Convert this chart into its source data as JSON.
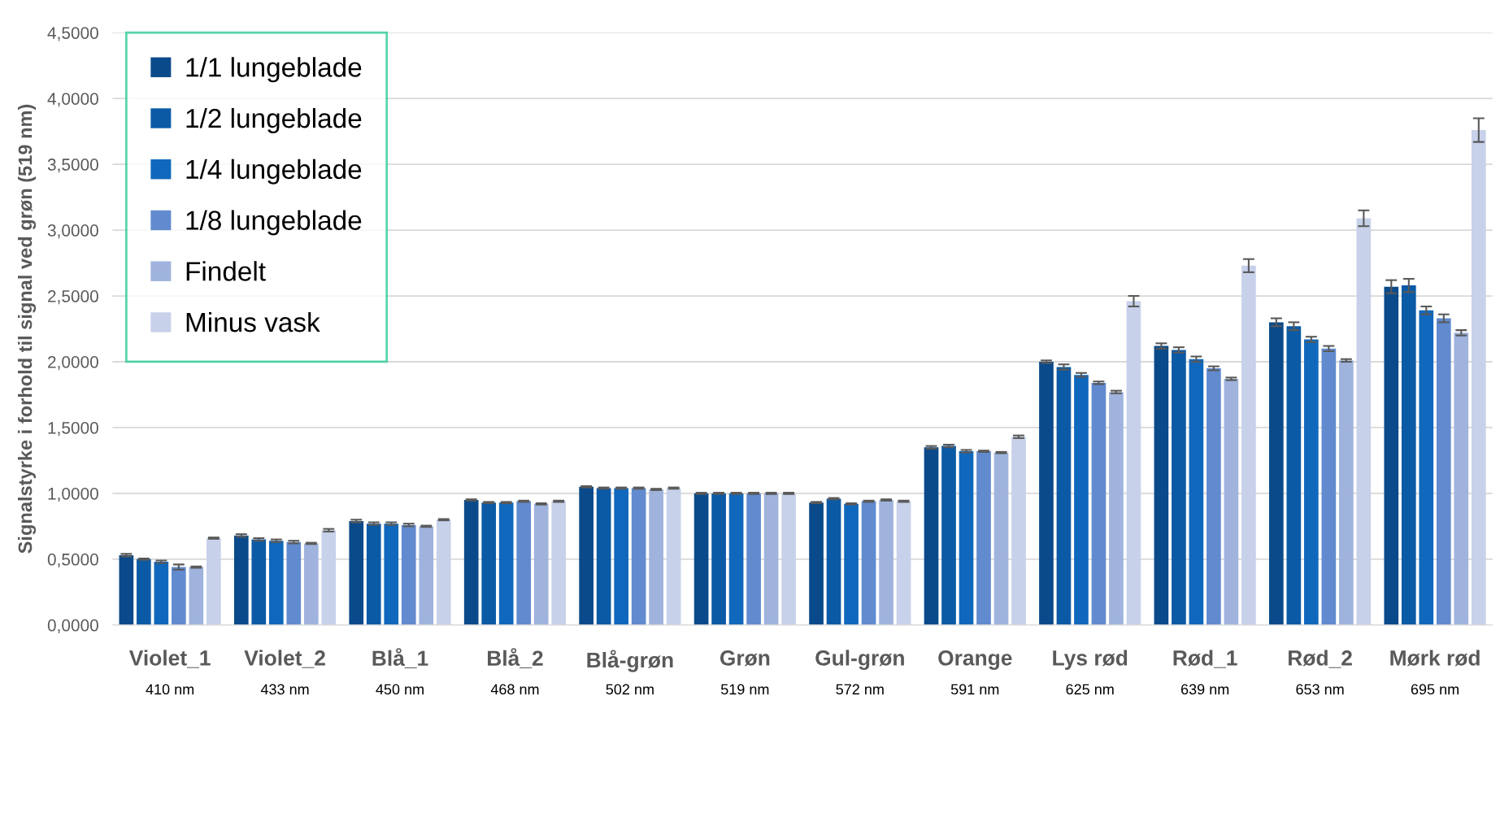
{
  "chart_data": {
    "type": "bar",
    "ylabel": "Signalstyrke i forhold til signal ved grøn (519 nm)",
    "categories": [
      "Violet_1\n410 nm",
      "Violet_2\n433 nm",
      "Blå_1\n450 nm",
      "Blå_2\n468 nm",
      "Blå-grøn\n502 nm",
      "Grøn\n519 nm",
      "Gul-grøn\n572 nm",
      "Orange\n591 nm",
      "Lys rød\n625 nm",
      "Rød_1\n639 nm",
      "Rød_2\n653 nm",
      "Mørk rød\n695 nm"
    ],
    "series": [
      {
        "name": "1/1 lungeblade",
        "color": "#0a4a8a",
        "values": [
          0.53,
          0.68,
          0.79,
          0.95,
          1.05,
          1.0,
          0.93,
          1.35,
          2.0,
          2.12,
          2.3,
          2.57
        ],
        "errors": [
          0.01,
          0.01,
          0.01,
          0.005,
          0.005,
          0.005,
          0.005,
          0.01,
          0.01,
          0.02,
          0.03,
          0.05
        ]
      },
      {
        "name": "1/2 lungeblade",
        "color": "#0b5aa6",
        "values": [
          0.5,
          0.65,
          0.77,
          0.93,
          1.04,
          1.0,
          0.96,
          1.36,
          1.96,
          2.09,
          2.27,
          2.58
        ],
        "errors": [
          0.005,
          0.01,
          0.01,
          0.005,
          0.005,
          0.005,
          0.005,
          0.01,
          0.02,
          0.02,
          0.03,
          0.05
        ]
      },
      {
        "name": "1/4 lungeblade",
        "color": "#1068bd",
        "values": [
          0.48,
          0.64,
          0.77,
          0.93,
          1.04,
          1.0,
          0.92,
          1.32,
          1.9,
          2.02,
          2.17,
          2.39
        ],
        "errors": [
          0.01,
          0.01,
          0.01,
          0.005,
          0.005,
          0.005,
          0.005,
          0.01,
          0.015,
          0.02,
          0.02,
          0.03
        ]
      },
      {
        "name": "1/8 lungeblade",
        "color": "#628bcf",
        "values": [
          0.44,
          0.63,
          0.76,
          0.94,
          1.04,
          1.0,
          0.94,
          1.32,
          1.84,
          1.95,
          2.1,
          2.33
        ],
        "errors": [
          0.02,
          0.01,
          0.01,
          0.005,
          0.005,
          0.005,
          0.005,
          0.005,
          0.01,
          0.015,
          0.02,
          0.03
        ]
      },
      {
        "name": "Findelt",
        "color": "#9fb3dd",
        "values": [
          0.44,
          0.62,
          0.75,
          0.92,
          1.03,
          1.0,
          0.95,
          1.31,
          1.77,
          1.87,
          2.01,
          2.22
        ],
        "errors": [
          0.005,
          0.005,
          0.005,
          0.005,
          0.005,
          0.005,
          0.005,
          0.005,
          0.01,
          0.01,
          0.01,
          0.02
        ]
      },
      {
        "name": "Minus vask",
        "color": "#c8d1ea",
        "values": [
          0.66,
          0.72,
          0.8,
          0.94,
          1.04,
          1.0,
          0.94,
          1.43,
          2.46,
          2.73,
          3.09,
          3.76
        ],
        "errors": [
          0.005,
          0.01,
          0.005,
          0.005,
          0.005,
          0.005,
          0.005,
          0.01,
          0.04,
          0.05,
          0.06,
          0.09
        ]
      }
    ],
    "ylim": [
      0,
      4.5
    ],
    "yticks": [
      {
        "value": 0,
        "label": "0,0000"
      },
      {
        "value": 0.5,
        "label": "0,5000"
      },
      {
        "value": 1,
        "label": "1,0000"
      },
      {
        "value": 1.5,
        "label": "1,5000"
      },
      {
        "value": 2,
        "label": "2,0000"
      },
      {
        "value": 2.5,
        "label": "2,5000"
      },
      {
        "value": 3,
        "label": "3,0000"
      },
      {
        "value": 3.5,
        "label": "3,5000"
      },
      {
        "value": 4,
        "label": "4,0000"
      },
      {
        "value": 4.5,
        "label": "4,5000"
      }
    ],
    "grid": "y",
    "legend": "top left"
  }
}
